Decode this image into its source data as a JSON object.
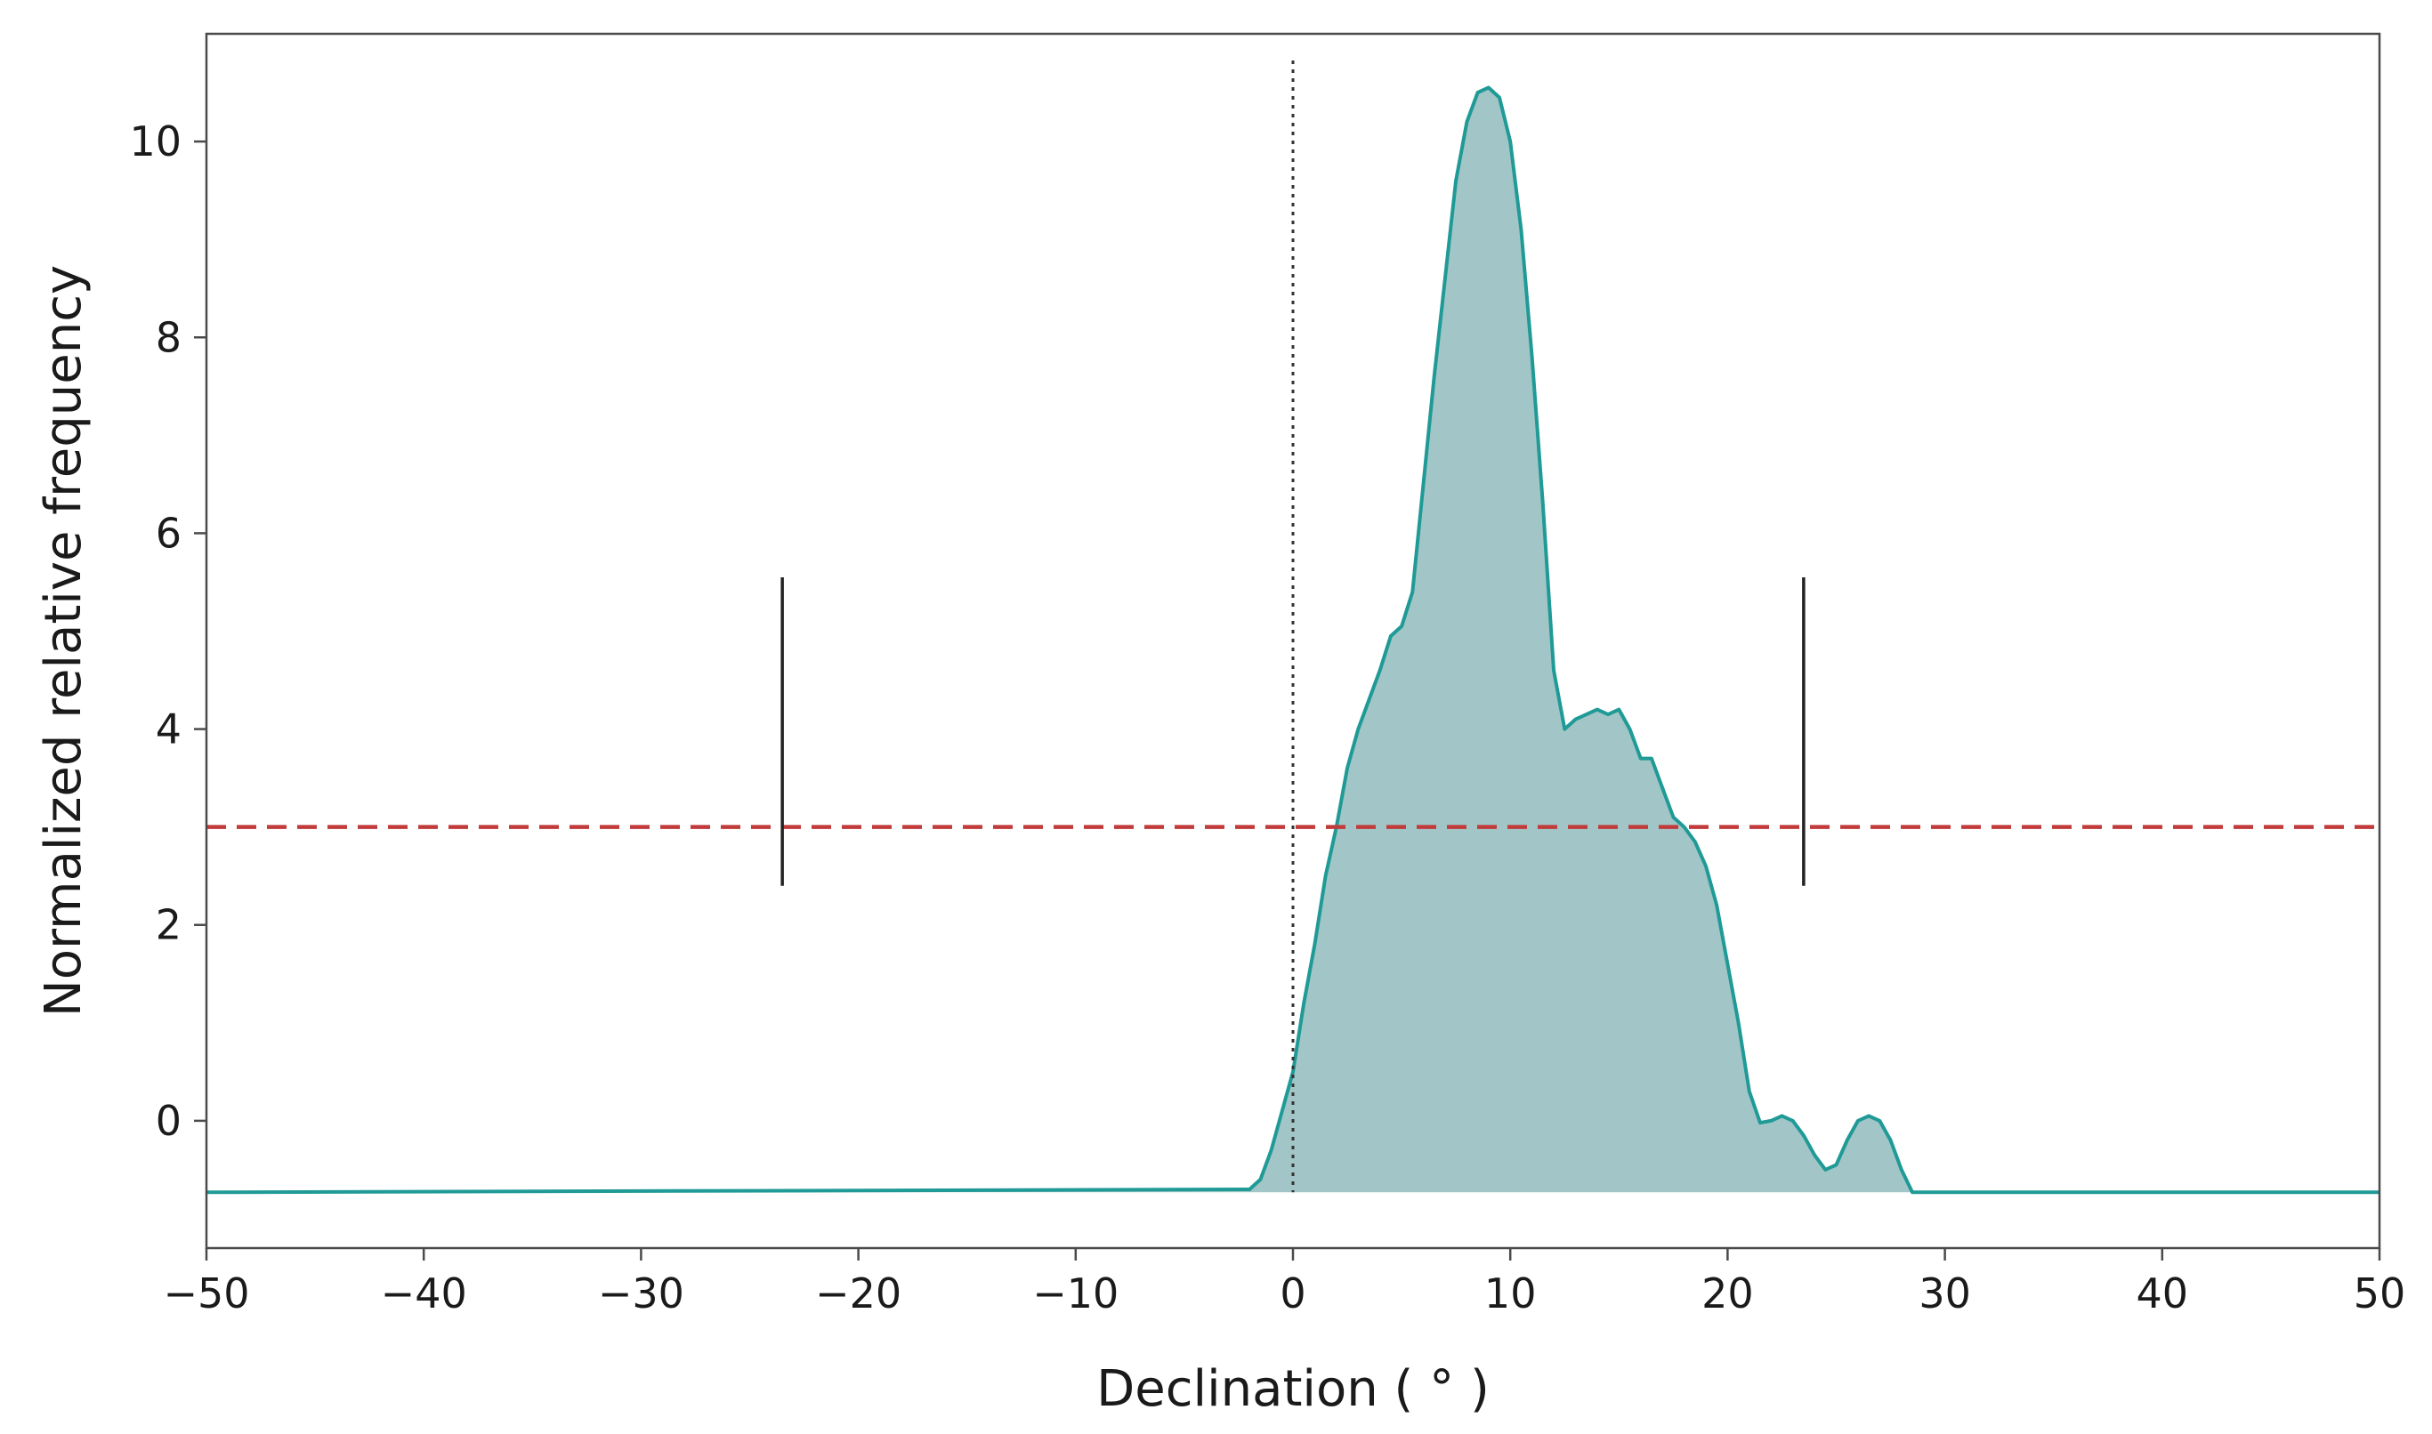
{
  "chart_data": {
    "type": "area",
    "title": "",
    "xlabel": "Declination ( ° )",
    "ylabel": "Normalized relative frequency",
    "xlim": [
      -50,
      50
    ],
    "ylim": [
      -1.3,
      11.1
    ],
    "x_ticks": [
      -50,
      -40,
      -30,
      -20,
      -10,
      0,
      10,
      20,
      30,
      40,
      50
    ],
    "x_tick_labels": [
      "−50",
      "−40",
      "−30",
      "−20",
      "−10",
      "0",
      "10",
      "20",
      "30",
      "40",
      "50"
    ],
    "y_ticks": [
      0,
      2,
      4,
      6,
      8,
      10
    ],
    "y_tick_labels": [
      "0",
      "2",
      "4",
      "6",
      "8",
      "10"
    ],
    "grid": false,
    "legend": "none",
    "baseline": -0.73,
    "threshold": 3.0,
    "vertical_dotted_x": 0,
    "markers": [
      {
        "x": -23.5,
        "y_low": 2.4,
        "y_high": 5.55
      },
      {
        "x": 23.5,
        "y_low": 2.4,
        "y_high": 5.55
      }
    ],
    "series": [
      {
        "x": [
          -50,
          -2,
          -1.5,
          -1,
          -0.5,
          0,
          0.5,
          1,
          1.5,
          2,
          2.5,
          3,
          3.5,
          4,
          4.5,
          5,
          5.5,
          6,
          6.5,
          7,
          7.5,
          8,
          8.5,
          9,
          9.5,
          10,
          10.5,
          11,
          11.5,
          12,
          12.5,
          13,
          13.5,
          14,
          14.5,
          15,
          15.5,
          16,
          16.5,
          17,
          17.5,
          18,
          18.5,
          19,
          19.5,
          20,
          20.5,
          21,
          21.5,
          22,
          22.5,
          23,
          23.5,
          24,
          24.5,
          25,
          25.5,
          26,
          26.5,
          27,
          27.5,
          28,
          28.5,
          29,
          29.5,
          30,
          30.5,
          31,
          31.5,
          32,
          50
        ],
        "y": [
          -0.73,
          -0.7,
          -0.6,
          -0.3,
          0.1,
          0.5,
          1.2,
          1.8,
          2.5,
          3.0,
          3.6,
          4.0,
          4.3,
          4.6,
          4.95,
          5.05,
          5.4,
          6.5,
          7.6,
          8.6,
          9.6,
          10.2,
          10.5,
          10.55,
          10.45,
          10.0,
          9.1,
          7.8,
          6.3,
          4.6,
          4.0,
          4.1,
          4.15,
          4.2,
          4.15,
          4.2,
          4.0,
          3.7,
          3.7,
          3.4,
          3.1,
          3.0,
          2.85,
          2.6,
          2.2,
          1.6,
          1.0,
          0.3,
          -0.02,
          0.0,
          0.05,
          0.0,
          -0.15,
          -0.35,
          -0.5,
          -0.45,
          -0.2,
          0.0,
          0.05,
          0.0,
          -0.2,
          -0.5,
          -0.73,
          -0.73,
          -0.73,
          -0.73,
          -0.73,
          -0.73,
          -0.73,
          -0.73,
          -0.73
        ]
      }
    ],
    "colors": {
      "line": "#1f9a96",
      "fill": "#a2c6c7",
      "threshold": "#c23b3b",
      "axis": "#4a4a4a",
      "marker": "#222222",
      "dotted": "#333333"
    }
  }
}
